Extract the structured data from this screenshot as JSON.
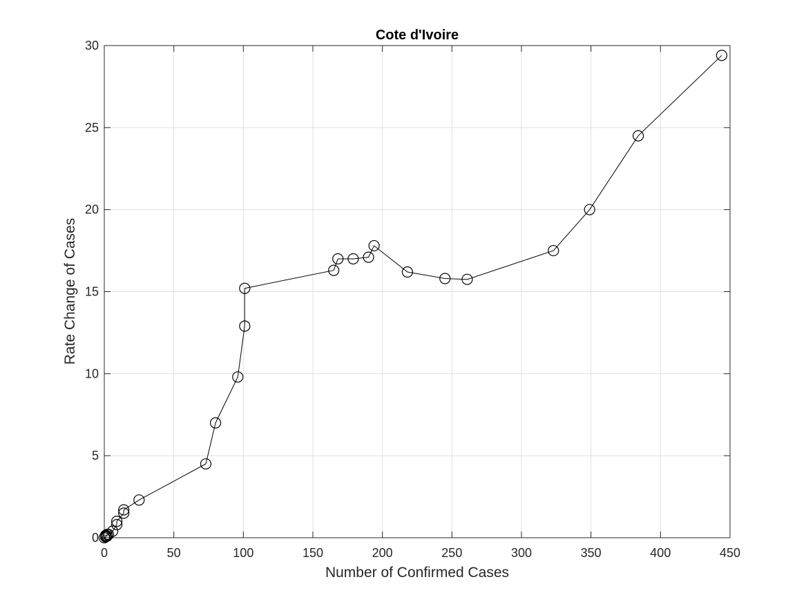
{
  "chart_data": {
    "type": "line",
    "title": "Cote d'Ivoire",
    "xlabel": "Number of Confirmed Cases",
    "ylabel": "Rate Change of Cases",
    "xlim": [
      0,
      450
    ],
    "ylim": [
      0,
      30
    ],
    "xticks": [
      0,
      50,
      100,
      150,
      200,
      250,
      300,
      350,
      400,
      450
    ],
    "yticks": [
      0,
      5,
      10,
      15,
      20,
      25,
      30
    ],
    "grid": true,
    "marker": "circle",
    "line_color": "#000000",
    "series": [
      {
        "x": [
          0,
          1,
          1,
          1,
          1,
          2,
          2,
          3,
          6,
          9,
          9,
          14,
          14,
          25,
          73,
          80,
          96,
          101,
          101,
          165,
          168,
          179,
          190,
          194,
          218,
          245,
          261,
          323,
          349,
          384,
          444
        ],
        "y": [
          0,
          0.05,
          0.08,
          0.1,
          0.15,
          0.1,
          0.2,
          0.2,
          0.4,
          0.8,
          1.0,
          1.5,
          1.7,
          2.3,
          4.5,
          7.0,
          9.8,
          12.9,
          15.2,
          16.3,
          17.0,
          17.0,
          17.1,
          17.8,
          16.2,
          15.8,
          15.75,
          17.5,
          20.0,
          24.5,
          29.4
        ]
      }
    ]
  }
}
